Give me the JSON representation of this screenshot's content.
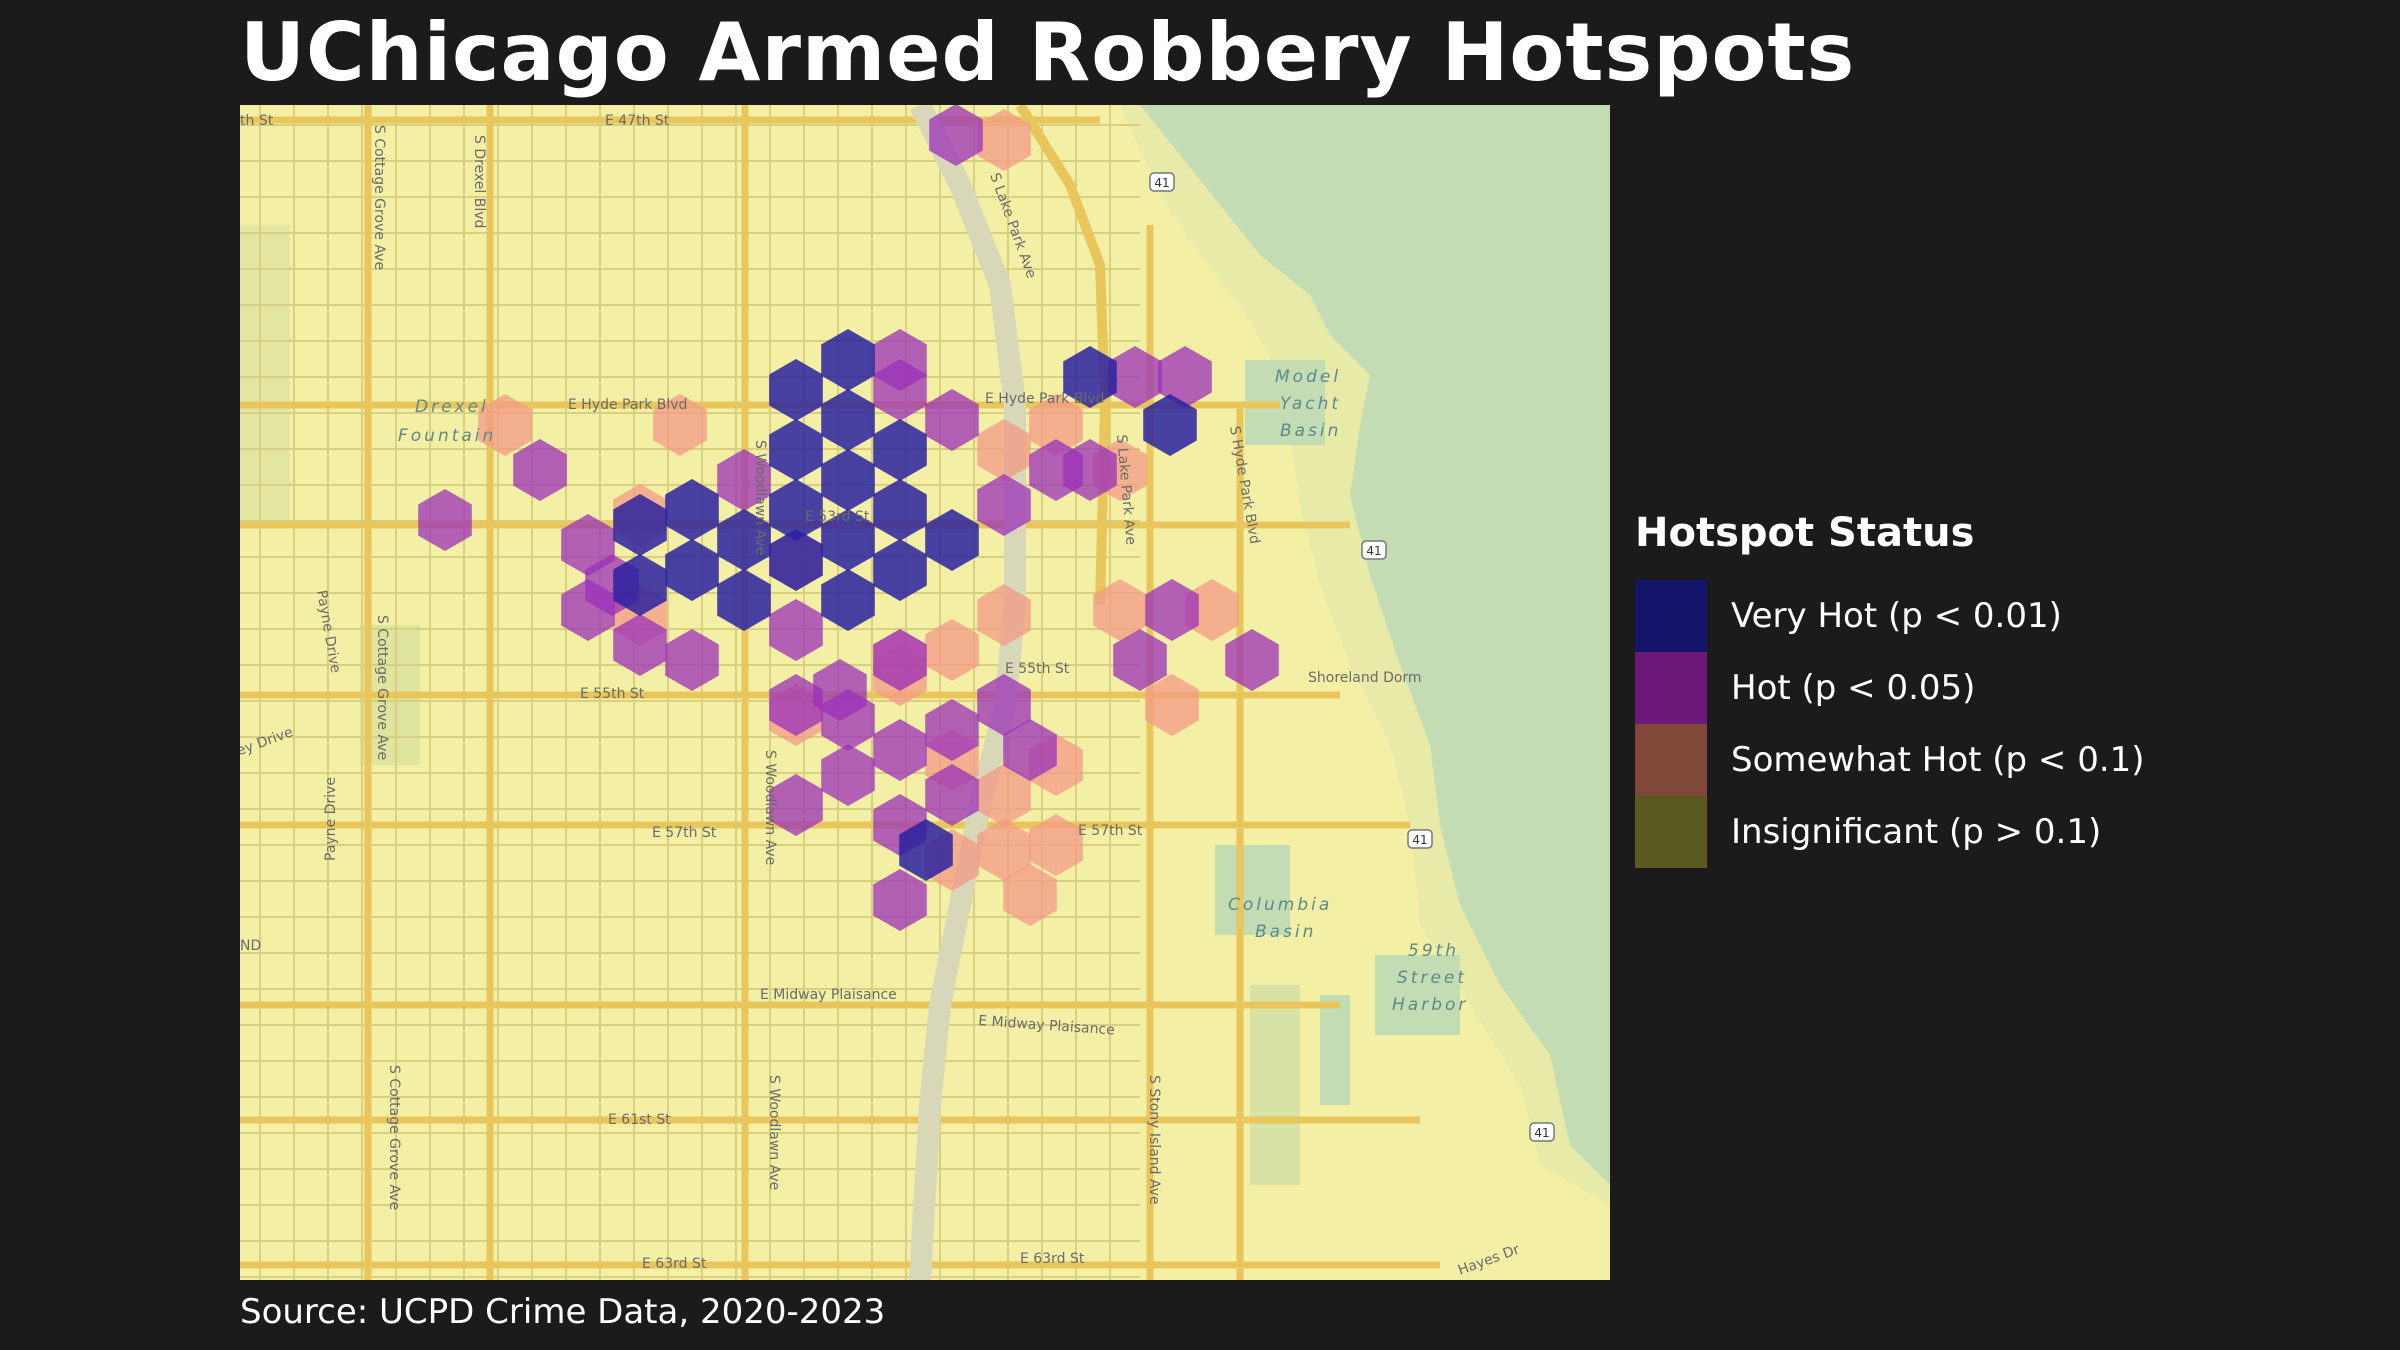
{
  "title": "UChicago Armed Robbery Hotspots",
  "source": "Source: UCPD Crime Data, 2020-2023",
  "legend": {
    "title": "Hotspot Status",
    "items": [
      {
        "label": "Very Hot (p < 0.01)",
        "color": "#15156b",
        "status": "very_hot"
      },
      {
        "label": "Hot (p < 0.05)",
        "color": "#6b1a77",
        "status": "hot"
      },
      {
        "label": "Somewhat Hot (p < 0.1)",
        "color": "#804838",
        "status": "somewhat_hot"
      },
      {
        "label": "Insignificant (p > 0.1)",
        "color": "#5a5a20",
        "status": "insignificant"
      }
    ]
  },
  "hex_fill_colors": {
    "very_hot": "#2a22a0",
    "hot": "#9b30b8",
    "somewhat_hot": "#f39a86"
  },
  "map_labels": {
    "streets": [
      "E 47th St",
      "E Hyde Park Blvd",
      "E Hyde Park Blvd",
      "E 53rd St",
      "E 55th St",
      "E 55th St",
      "E 57th St",
      "E 57th St",
      "E Midway Plaisance",
      "E Midway Plaisance",
      "E 61st St",
      "E 63rd St",
      "E 63rd St",
      "S Drexel Blvd",
      "S Cottage Grove Ave",
      "S Cottage Grove Ave",
      "S Cottage Grove Ave",
      "S Woodlawn Ave",
      "S Woodlawn Ave",
      "S Woodlawn Ave",
      "S Lake Park Ave",
      "S Lake Park Ave",
      "S Hyde Park Blvd",
      "S Stony Island Ave",
      "Payne Drive",
      "Payne Drive",
      "Hayes Dr",
      "ley Drive",
      "th St"
    ],
    "places": [
      "Drexel",
      "Fountain",
      "Model",
      "Yacht",
      "Basin",
      "Columbia",
      "Basin",
      "59th",
      "Street",
      "Harbor",
      "Shoreland Dorm",
      "ND"
    ],
    "highway": "41"
  }
}
